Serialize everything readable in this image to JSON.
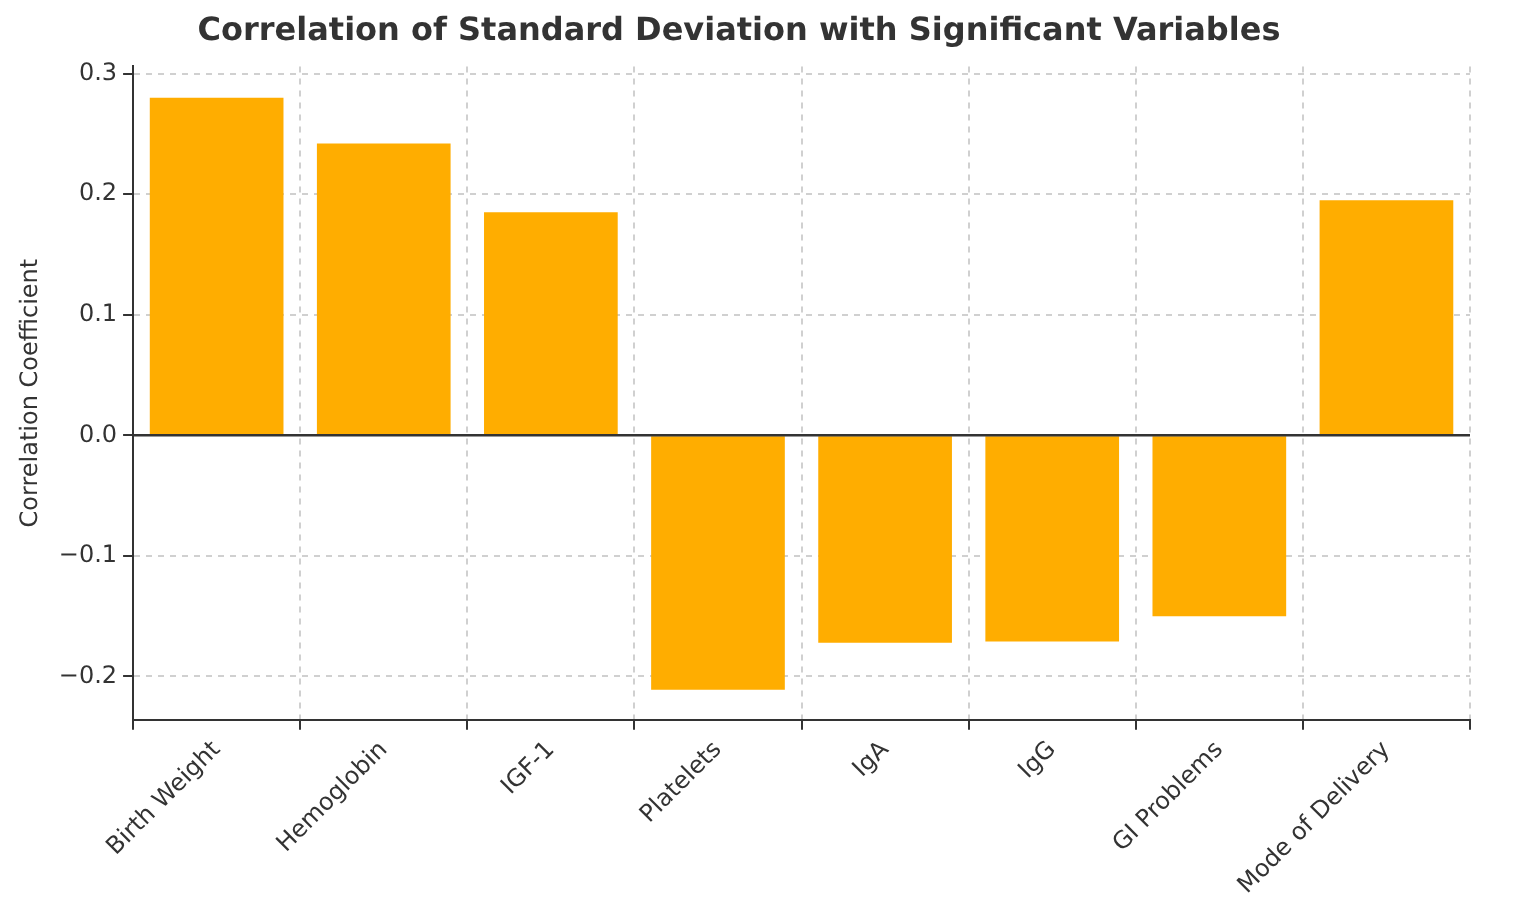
{
  "chart_data": {
    "type": "bar",
    "title": "Correlation of Standard Deviation with Significant Variables",
    "ylabel": "Correlation Coefficient",
    "categories": [
      "Birth Weight",
      "Hemoglobin",
      "IGF-1",
      "Platelets",
      "IgA",
      "IgG",
      "GI Problems",
      "Mode of Delivery"
    ],
    "values": [
      0.28,
      0.242,
      0.185,
      -0.211,
      -0.172,
      -0.171,
      -0.15,
      0.195
    ],
    "color": "#ffad00",
    "ylim": [
      -0.236,
      0.306
    ],
    "yticks": [
      {
        "value": -0.2,
        "label": "−0.2"
      },
      {
        "value": -0.1,
        "label": "−0.1"
      },
      {
        "value": 0,
        "label": "0.0"
      },
      {
        "value": 0.1,
        "label": "0.1"
      },
      {
        "value": 0.2,
        "label": "0.2"
      },
      {
        "value": 0.3,
        "label": "0.3"
      }
    ],
    "grid": true,
    "legend": false,
    "ref_lines": [
      {
        "axis": "y",
        "value": 0,
        "color": "#333333"
      }
    ]
  }
}
